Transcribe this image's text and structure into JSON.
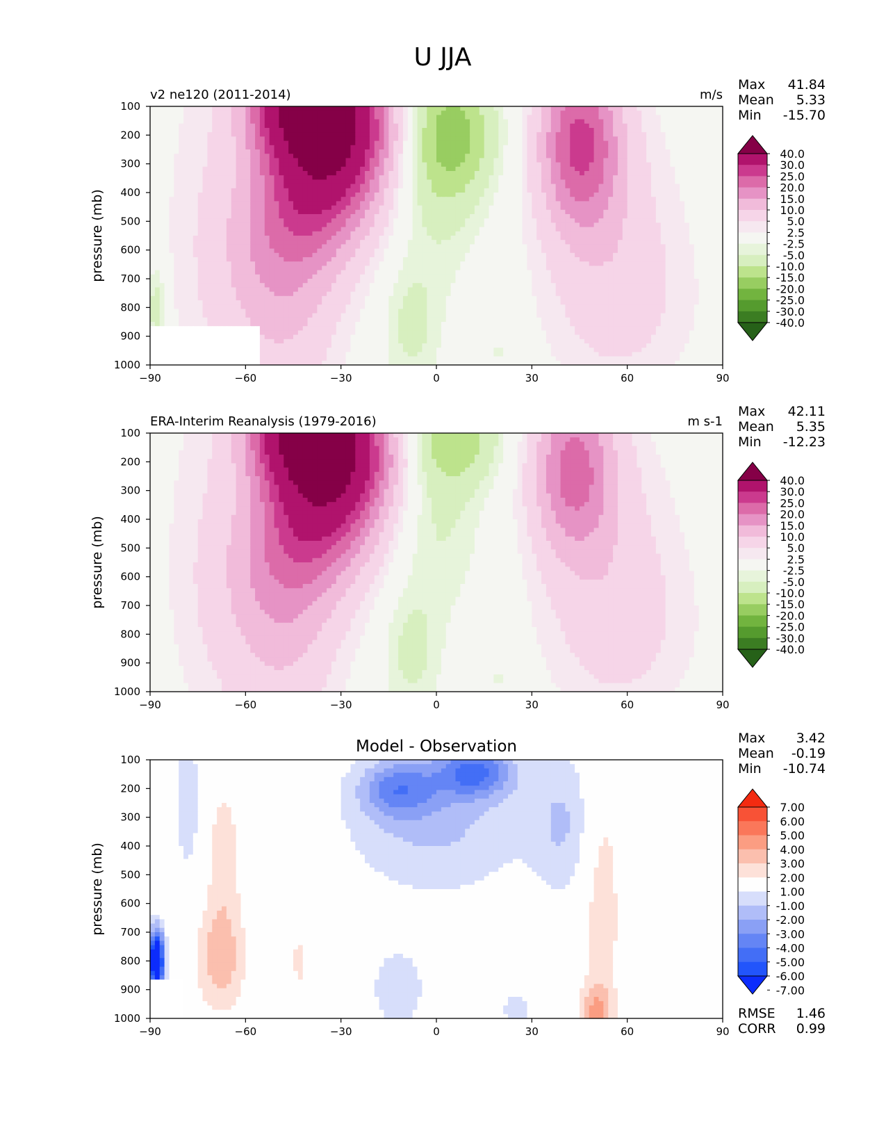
{
  "figure": {
    "title": "U JJA"
  },
  "palettes": {
    "pink_green": [
      "#266118",
      "#3b7d22",
      "#559b2e",
      "#72b43f",
      "#98cd61",
      "#bde38c",
      "#d7efbf",
      "#e7f4db",
      "#f5f6f2",
      "#f6e8f0",
      "#f6d5e8",
      "#f1bbda",
      "#e693c5",
      "#dc6ba9",
      "#cb3a8e",
      "#b0136c",
      "#850047"
    ],
    "blue_red": [
      "#0c2cfc",
      "#2255fb",
      "#436ef6",
      "#6485f5",
      "#8aa0f5",
      "#b0bdf8",
      "#d7defb",
      "#fefefe",
      "#fde1d9",
      "#fbbfae",
      "#fb9d82",
      "#fa775a",
      "#f85236",
      "#f32b11"
    ]
  },
  "chart_data": [
    {
      "type": "contour",
      "title": "v2 ne120 (2011-2014)",
      "units": "m/s",
      "xlabel": "",
      "ylabel": "pressure (mb)",
      "xlim": [
        -90,
        90
      ],
      "ylim": [
        1000,
        100
      ],
      "xticks": [
        "−90",
        "−60",
        "−30",
        "0",
        "30",
        "60",
        "90"
      ],
      "yticks": [
        "100",
        "200",
        "300",
        "400",
        "500",
        "600",
        "700",
        "800",
        "900",
        "1000"
      ],
      "stats": [
        {
          "label": "Max",
          "value": "41.84"
        },
        {
          "label": "Mean",
          "value": "5.33"
        },
        {
          "label": "Min",
          "value": "-15.70"
        }
      ],
      "colorbar_labels": [
        "40.0",
        "30.0",
        "25.0",
        "20.0",
        "15.0",
        "10.0",
        "5.0",
        "2.5",
        "-2.5",
        "-5.0",
        "-10.0",
        "-15.0",
        "-20.0",
        "-25.0",
        "-30.0",
        "-40.0"
      ],
      "features": [
        {
          "lat": -44,
          "p": 120,
          "value": 34
        },
        {
          "lat": -31,
          "p": 210,
          "value": 41.8
        },
        {
          "lat": 44,
          "p": 210,
          "value": 24
        },
        {
          "lat": 8,
          "p": 200,
          "value": -15.7
        },
        {
          "lat": -8,
          "p": 850,
          "value": -7
        }
      ]
    },
    {
      "type": "contour",
      "title": "ERA-Interim Reanalysis (1979-2016)",
      "units": "m s-1",
      "xlabel": "",
      "ylabel": "pressure (mb)",
      "xlim": [
        -90,
        90
      ],
      "ylim": [
        1000,
        100
      ],
      "xticks": [
        "−90",
        "−60",
        "−30",
        "0",
        "30",
        "60",
        "90"
      ],
      "yticks": [
        "100",
        "200",
        "300",
        "400",
        "500",
        "600",
        "700",
        "800",
        "900",
        "1000"
      ],
      "stats": [
        {
          "label": "Max",
          "value": "42.11"
        },
        {
          "label": "Mean",
          "value": "5.35"
        },
        {
          "label": "Min",
          "value": "-12.23"
        }
      ],
      "colorbar_labels": [
        "40.0",
        "30.0",
        "25.0",
        "20.0",
        "15.0",
        "10.0",
        "5.0",
        "2.5",
        "-2.5",
        "-5.0",
        "-10.0",
        "-15.0",
        "-20.0",
        "-25.0",
        "-30.0",
        "-40.0"
      ],
      "features": [
        {
          "lat": -44,
          "p": 120,
          "value": 34
        },
        {
          "lat": -31,
          "p": 210,
          "value": 42.1
        },
        {
          "lat": 43,
          "p": 200,
          "value": 21
        },
        {
          "lat": 6,
          "p": 130,
          "value": -12.2
        },
        {
          "lat": -8,
          "p": 850,
          "value": -7
        }
      ]
    },
    {
      "type": "contour",
      "title": "Model - Observation",
      "units": "",
      "xlabel": "",
      "ylabel": "pressure (mb)",
      "xlim": [
        -90,
        90
      ],
      "ylim": [
        1000,
        100
      ],
      "xticks": [
        "−90",
        "−60",
        "−30",
        "0",
        "30",
        "60",
        "90"
      ],
      "yticks": [
        "100",
        "200",
        "300",
        "400",
        "500",
        "600",
        "700",
        "800",
        "900",
        "1000"
      ],
      "stats": [
        {
          "label": "Max",
          "value": "3.42"
        },
        {
          "label": "Mean",
          "value": "-0.19"
        },
        {
          "label": "Min",
          "value": "-10.74"
        }
      ],
      "extra_stats": [
        {
          "label": "RMSE",
          "value": "1.46"
        },
        {
          "label": "CORR",
          "value": "0.99"
        }
      ],
      "colorbar_labels": [
        "7.00",
        "6.00",
        "5.00",
        "4.00",
        "3.00",
        "2.00",
        "1.00",
        "-1.00",
        "-2.00",
        "-3.00",
        "-4.00",
        "-5.00",
        "-6.00",
        "-7.00"
      ],
      "features": [
        {
          "lat": 12,
          "p": 140,
          "value": -4.5
        },
        {
          "lat": -12,
          "p": 250,
          "value": -2
        },
        {
          "lat": -70,
          "p": 800,
          "value": 3.4
        },
        {
          "lat": -87,
          "p": 800,
          "value": -10.7
        },
        {
          "lat": 50,
          "p": 950,
          "value": 3
        }
      ]
    }
  ]
}
